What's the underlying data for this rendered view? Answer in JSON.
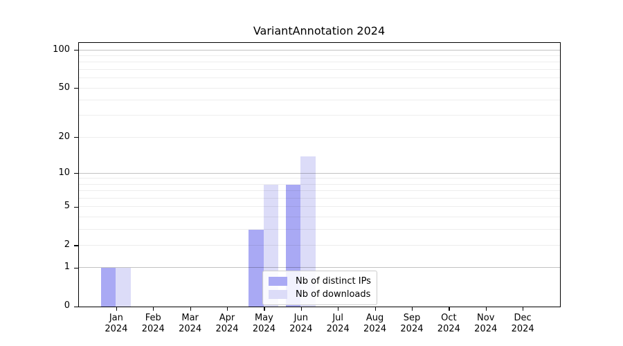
{
  "chart_data": {
    "type": "bar",
    "title": "VariantAnnotation 2024",
    "x_categories": [
      "Jan",
      "Feb",
      "Mar",
      "Apr",
      "May",
      "Jun",
      "Jul",
      "Aug",
      "Sep",
      "Oct",
      "Nov",
      "Dec"
    ],
    "x_tick_year": "2024",
    "series": [
      {
        "name": "Nb of distinct IPs",
        "key": "distinct-ips",
        "color": "#a9a9f4",
        "values": [
          1,
          0,
          0,
          0,
          3,
          8,
          0,
          0,
          0,
          0,
          0,
          0
        ]
      },
      {
        "name": "Nb of downloads",
        "key": "downloads",
        "color": "#dcdcf8",
        "values": [
          1,
          0,
          0,
          0,
          8,
          14,
          0,
          0,
          0,
          0,
          0,
          0
        ]
      }
    ],
    "y_scale": "log1p",
    "ylim": [
      0,
      113
    ],
    "y_ticks_labeled": [
      0,
      1,
      2,
      5,
      10,
      20,
      50,
      100
    ],
    "grid_major": [
      1,
      10,
      100
    ],
    "grid_minor": [
      2,
      3,
      4,
      5,
      6,
      7,
      8,
      9,
      20,
      30,
      40,
      50,
      60,
      70,
      80,
      90
    ],
    "grid": true,
    "legend_position": "inside-bottom-center"
  }
}
